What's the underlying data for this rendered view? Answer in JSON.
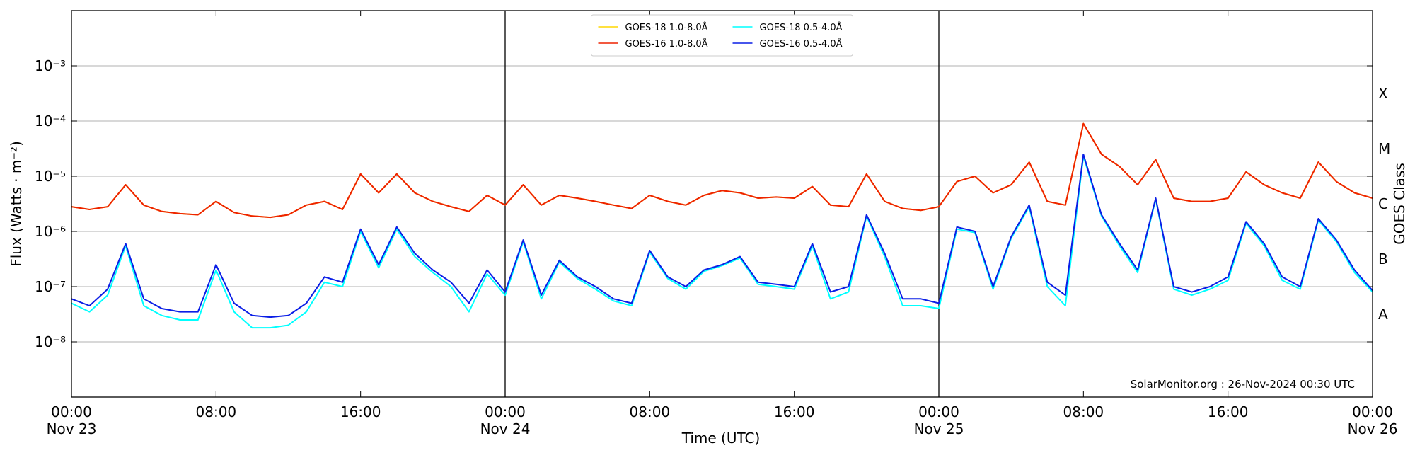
{
  "chart_data": {
    "type": "line",
    "xlabel": "Time (UTC)",
    "ylabel": "Flux (Watts · m⁻²)",
    "y2label": "GOES Class",
    "annotation": "SolarMonitor.org : 26-Nov-2024 00:30 UTC",
    "yscale": "log",
    "grid": true,
    "legend": "upper center",
    "xlim": [
      "Nov 23 00:00",
      "Nov 26 00:00"
    ],
    "xticks": [
      {
        "value": "Nov 23 00:00",
        "label": [
          "00:00",
          "Nov 23"
        ]
      },
      {
        "value": "Nov 23 08:00",
        "label": "08:00"
      },
      {
        "value": "Nov 23 16:00",
        "label": "16:00"
      },
      {
        "value": "Nov 24 00:00",
        "label": [
          "00:00",
          "Nov 24"
        ]
      },
      {
        "value": "Nov 24 08:00",
        "label": "08:00"
      },
      {
        "value": "Nov 24 16:00",
        "label": "16:00"
      },
      {
        "value": "Nov 25 00:00",
        "label": [
          "00:00",
          "Nov 25"
        ]
      },
      {
        "value": "Nov 25 08:00",
        "label": "08:00"
      },
      {
        "value": "Nov 25 16:00",
        "label": "16:00"
      },
      {
        "value": "Nov 26 00:00",
        "label": [
          "00:00",
          "Nov 26"
        ]
      }
    ],
    "xlines": [
      "Nov 24 00:00",
      "Nov 25 00:00"
    ],
    "ylim": [
      1e-09,
      0.01
    ],
    "yticks": [
      {
        "value": 1e-08,
        "label": "10⁻⁸"
      },
      {
        "value": 1e-07,
        "label": "10⁻⁷"
      },
      {
        "value": 1e-06,
        "label": "10⁻⁶"
      },
      {
        "value": 1e-05,
        "label": "10⁻⁵"
      },
      {
        "value": 0.0001,
        "label": "10⁻⁴"
      },
      {
        "value": 0.001,
        "label": "10⁻³"
      }
    ],
    "y2lim": [
      1e-09,
      0.01
    ],
    "y2ticks": [
      {
        "value": 3.16e-08,
        "label": "A"
      },
      {
        "value": 3.16e-07,
        "label": "B"
      },
      {
        "value": 3.16e-06,
        "label": "C"
      },
      {
        "value": 3.16e-05,
        "label": "M"
      },
      {
        "value": 0.000316,
        "label": "X"
      }
    ],
    "x": [
      "Nov 23 00:00",
      "Nov 23 01:00",
      "Nov 23 02:00",
      "Nov 23 03:00",
      "Nov 23 04:00",
      "Nov 23 05:00",
      "Nov 23 06:00",
      "Nov 23 07:00",
      "Nov 23 08:00",
      "Nov 23 09:00",
      "Nov 23 10:00",
      "Nov 23 11:00",
      "Nov 23 12:00",
      "Nov 23 13:00",
      "Nov 23 14:00",
      "Nov 23 15:00",
      "Nov 23 16:00",
      "Nov 23 17:00",
      "Nov 23 18:00",
      "Nov 23 19:00",
      "Nov 23 20:00",
      "Nov 23 21:00",
      "Nov 23 22:00",
      "Nov 23 23:00",
      "Nov 24 00:00",
      "Nov 24 01:00",
      "Nov 24 02:00",
      "Nov 24 03:00",
      "Nov 24 04:00",
      "Nov 24 05:00",
      "Nov 24 06:00",
      "Nov 24 07:00",
      "Nov 24 08:00",
      "Nov 24 09:00",
      "Nov 24 10:00",
      "Nov 24 11:00",
      "Nov 24 12:00",
      "Nov 24 13:00",
      "Nov 24 14:00",
      "Nov 24 15:00",
      "Nov 24 16:00",
      "Nov 24 17:00",
      "Nov 24 18:00",
      "Nov 24 19:00",
      "Nov 24 20:00",
      "Nov 24 21:00",
      "Nov 24 22:00",
      "Nov 24 23:00",
      "Nov 25 00:00",
      "Nov 25 01:00",
      "Nov 25 02:00",
      "Nov 25 03:00",
      "Nov 25 04:00",
      "Nov 25 05:00",
      "Nov 25 06:00",
      "Nov 25 07:00",
      "Nov 25 08:00",
      "Nov 25 09:00",
      "Nov 25 10:00",
      "Nov 25 11:00",
      "Nov 25 12:00",
      "Nov 25 13:00",
      "Nov 25 14:00",
      "Nov 25 15:00",
      "Nov 25 16:00",
      "Nov 25 17:00",
      "Nov 25 18:00",
      "Nov 25 19:00",
      "Nov 25 20:00",
      "Nov 25 21:00",
      "Nov 25 22:00",
      "Nov 25 23:00",
      "Nov 26 00:00"
    ],
    "series": [
      {
        "name": "GOES-18 1.0-8.0Å",
        "color": "#ffd700",
        "values": [
          2.8e-06,
          2.5e-06,
          2.8e-06,
          7e-06,
          3e-06,
          2.3e-06,
          2.1e-06,
          2e-06,
          3.5e-06,
          2.2e-06,
          1.9e-06,
          1.8e-06,
          2e-06,
          3e-06,
          3.5e-06,
          2.5e-06,
          1.1e-05,
          5e-06,
          1.1e-05,
          5e-06,
          3.5e-06,
          2.8e-06,
          2.3e-06,
          4.5e-06,
          3e-06,
          7e-06,
          3e-06,
          4.5e-06,
          4e-06,
          3.5e-06,
          3e-06,
          2.6e-06,
          4.5e-06,
          3.5e-06,
          3e-06,
          4.5e-06,
          5.5e-06,
          5e-06,
          4e-06,
          4.2e-06,
          4e-06,
          6.5e-06,
          3e-06,
          2.8e-06,
          1.1e-05,
          3.5e-06,
          2.6e-06,
          2.4e-06,
          2.8e-06,
          8e-06,
          1e-05,
          5e-06,
          7e-06,
          1.8e-05,
          3.5e-06,
          3e-06,
          9e-05,
          2.5e-05,
          1.5e-05,
          7e-06,
          2e-05,
          4e-06,
          3.5e-06,
          3.5e-06,
          4e-06,
          1.2e-05,
          7e-06,
          5e-06,
          4e-06,
          1.8e-05,
          8e-06,
          5e-06,
          4e-06
        ]
      },
      {
        "name": "GOES-16 1.0-8.0Å",
        "color": "#ee2200",
        "values": [
          2.8e-06,
          2.5e-06,
          2.8e-06,
          7e-06,
          3e-06,
          2.3e-06,
          2.1e-06,
          2e-06,
          3.5e-06,
          2.2e-06,
          1.9e-06,
          1.8e-06,
          2e-06,
          3e-06,
          3.5e-06,
          2.5e-06,
          1.1e-05,
          5e-06,
          1.1e-05,
          5e-06,
          3.5e-06,
          2.8e-06,
          2.3e-06,
          4.5e-06,
          3e-06,
          7e-06,
          3e-06,
          4.5e-06,
          4e-06,
          3.5e-06,
          3e-06,
          2.6e-06,
          4.5e-06,
          3.5e-06,
          3e-06,
          4.5e-06,
          5.5e-06,
          5e-06,
          4e-06,
          4.2e-06,
          4e-06,
          6.5e-06,
          3e-06,
          2.8e-06,
          1.1e-05,
          3.5e-06,
          2.6e-06,
          2.4e-06,
          2.8e-06,
          8e-06,
          1e-05,
          5e-06,
          7e-06,
          1.8e-05,
          3.5e-06,
          3e-06,
          9e-05,
          2.5e-05,
          1.5e-05,
          7e-06,
          2e-05,
          4e-06,
          3.5e-06,
          3.5e-06,
          4e-06,
          1.2e-05,
          7e-06,
          5e-06,
          4e-06,
          1.8e-05,
          8e-06,
          5e-06,
          4e-06
        ]
      },
      {
        "name": "GOES-18 0.5-4.0Å",
        "color": "#00ffff",
        "values": [
          5e-08,
          3.5e-08,
          7e-08,
          5.5e-07,
          4.5e-08,
          3e-08,
          2.5e-08,
          2.5e-08,
          2e-07,
          3.5e-08,
          1.8e-08,
          1.8e-08,
          2e-08,
          3.5e-08,
          1.2e-07,
          1e-07,
          1e-06,
          2.2e-07,
          1.1e-06,
          3.5e-07,
          1.8e-07,
          1e-07,
          3.5e-08,
          1.7e-07,
          7e-08,
          6.5e-07,
          6e-08,
          2.8e-07,
          1.4e-07,
          9e-08,
          5.5e-08,
          4.5e-08,
          4.2e-07,
          1.4e-07,
          9e-08,
          1.9e-07,
          2.4e-07,
          3.3e-07,
          1.1e-07,
          1e-07,
          9e-08,
          5.5e-07,
          6e-08,
          8e-08,
          1.9e-06,
          3.5e-07,
          4.5e-08,
          4.5e-08,
          4e-08,
          1.1e-06,
          9.5e-07,
          9e-08,
          7.5e-07,
          2.8e-06,
          1e-07,
          4.5e-08,
          2.3e-05,
          1.9e-06,
          5.5e-07,
          1.8e-07,
          3.8e-06,
          9e-08,
          7e-08,
          9e-08,
          1.3e-07,
          1.4e-06,
          5.5e-07,
          1.3e-07,
          9e-08,
          1.6e-06,
          6.5e-07,
          1.8e-07,
          8e-08
        ]
      },
      {
        "name": "GOES-16 0.5-4.0Å",
        "color": "#0a1ee6",
        "values": [
          6e-08,
          4.5e-08,
          9e-08,
          6e-07,
          6e-08,
          4e-08,
          3.5e-08,
          3.5e-08,
          2.5e-07,
          5e-08,
          3e-08,
          2.8e-08,
          3e-08,
          5e-08,
          1.5e-07,
          1.2e-07,
          1.1e-06,
          2.5e-07,
          1.2e-06,
          4e-07,
          2e-07,
          1.2e-07,
          5e-08,
          2e-07,
          8e-08,
          7e-07,
          7e-08,
          3e-07,
          1.5e-07,
          1e-07,
          6e-08,
          5e-08,
          4.5e-07,
          1.5e-07,
          1e-07,
          2e-07,
          2.5e-07,
          3.5e-07,
          1.2e-07,
          1.1e-07,
          1e-07,
          6e-07,
          8e-08,
          1e-07,
          2e-06,
          4e-07,
          6e-08,
          6e-08,
          5e-08,
          1.2e-06,
          1e-06,
          1e-07,
          8e-07,
          3e-06,
          1.2e-07,
          7e-08,
          2.5e-05,
          2e-06,
          6e-07,
          2e-07,
          4e-06,
          1e-07,
          8e-08,
          1e-07,
          1.5e-07,
          1.5e-06,
          6e-07,
          1.5e-07,
          1e-07,
          1.7e-06,
          7e-07,
          2e-07,
          8.5e-08
        ]
      }
    ]
  }
}
